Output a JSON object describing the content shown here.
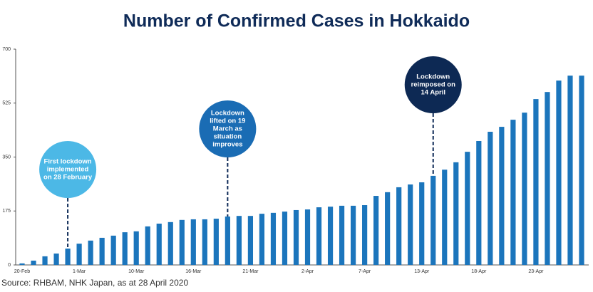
{
  "chart_data": {
    "type": "bar",
    "title": "Number of Confirmed Cases in Hokkaido",
    "source": "Source: RHBAM, NHK Japan, as at 28 April 2020",
    "categories": [
      "20-Feb",
      null,
      null,
      null,
      null,
      "1-Mar",
      null,
      null,
      null,
      null,
      "10-Mar",
      null,
      null,
      null,
      null,
      "16-Mar",
      null,
      null,
      null,
      null,
      "21-Mar",
      null,
      null,
      null,
      null,
      "2-Apr",
      null,
      null,
      null,
      null,
      "7-Apr",
      null,
      null,
      null,
      null,
      "13-Apr",
      null,
      null,
      null,
      null,
      "18-Apr",
      null,
      null,
      null,
      null,
      "23-Apr",
      null,
      null,
      null,
      null
    ],
    "values": [
      5,
      14,
      28,
      37,
      53,
      69,
      79,
      88,
      95,
      106,
      109,
      125,
      134,
      139,
      146,
      148,
      148,
      150,
      157,
      159,
      159,
      166,
      169,
      173,
      178,
      180,
      187,
      189,
      192,
      192,
      194,
      224,
      236,
      252,
      261,
      268,
      289,
      309,
      333,
      367,
      402,
      432,
      448,
      471,
      494,
      538,
      561,
      598,
      614,
      614
    ],
    "color": "#1b75bc",
    "ylim": [
      0,
      700
    ],
    "yticks": [
      0,
      175,
      350,
      525,
      700
    ],
    "annotations": [
      {
        "lines": [
          "First lockdown",
          "implemented",
          "on 28 February"
        ],
        "color": "#4cb8e6"
      },
      {
        "lines": [
          "Lockdown",
          "lifted on 19",
          "March as",
          "situation",
          "improves"
        ],
        "color": "#1a6cb4"
      },
      {
        "lines": [
          "Lockdown",
          "reimposed on",
          "14 April"
        ],
        "color": "#0d2954"
      }
    ]
  }
}
